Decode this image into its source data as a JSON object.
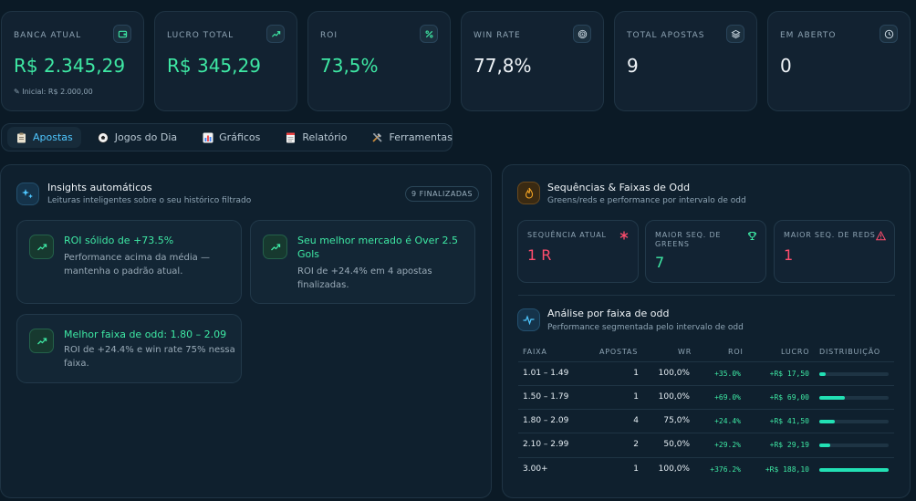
{
  "stats": [
    {
      "label": "BANCA ATUAL",
      "value": "R$ 2.345,29",
      "sub": "Inicial: R$ 2.000,00",
      "icon": "wallet-icon",
      "color": "#3ee8a4"
    },
    {
      "label": "LUCRO TOTAL",
      "value": "R$ 345,29",
      "icon": "trending-up-icon",
      "color": "#3ee8a4"
    },
    {
      "label": "ROI",
      "value": "73,5%",
      "icon": "percent-icon",
      "color": "#3ee8a4"
    },
    {
      "label": "WIN RATE",
      "value": "77,8%",
      "icon": "target-icon",
      "color": "#eef3f7"
    },
    {
      "label": "TOTAL APOSTAS",
      "value": "9",
      "icon": "layers-icon",
      "color": "#eef3f7"
    },
    {
      "label": "EM ABERTO",
      "value": "0",
      "icon": "clock-icon",
      "color": "#eef3f7"
    }
  ],
  "tabs": [
    {
      "label": "Apostas",
      "icon": "clipboard-icon",
      "active": true
    },
    {
      "label": "Jogos do Dia",
      "icon": "soccer-ball-icon",
      "active": false
    },
    {
      "label": "Gráficos",
      "icon": "bar-chart-icon",
      "active": false
    },
    {
      "label": "Relatório",
      "icon": "document-icon",
      "active": false
    },
    {
      "label": "Ferramentas",
      "icon": "tools-icon",
      "active": false
    }
  ],
  "insights": {
    "title": "Insights automáticos",
    "subtitle": "Leituras inteligentes sobre o seu histórico filtrado",
    "badge": "9 FINALIZADAS",
    "cards": [
      {
        "title": "ROI sólido de +73.5%",
        "desc_lines": [
          "Performance acima da média —",
          "mantenha o padrão atual."
        ]
      },
      {
        "title_lines": [
          "Seu melhor mercado é Over 2.5",
          "Gols"
        ],
        "desc_lines": [
          "ROI de +24.4% em 4 apostas",
          "finalizadas."
        ]
      },
      {
        "title": "Melhor faixa de odd: 1.80 – 2.09",
        "desc_lines": [
          "ROI de +24.4% e win rate 75% nessa",
          "faixa."
        ]
      }
    ]
  },
  "sequences": {
    "title": "Sequências & Faixas de Odd",
    "subtitle": "Greens/reds e performance por intervalo de odd",
    "cards": [
      {
        "label": "SEQUÊNCIA ATUAL",
        "value": "1 R",
        "icon": "asterisk-icon",
        "color": "#ff4d6d"
      },
      {
        "label_lines": [
          "MAIOR SEQ. DE",
          "GREENS"
        ],
        "value": "7",
        "icon": "trophy-icon",
        "color": "#3ee8a4"
      },
      {
        "label": "MAIOR SEQ. DE REDS",
        "value": "1",
        "icon": "warning-icon",
        "color": "#ff4d6d"
      }
    ]
  },
  "odds": {
    "title": "Análise por faixa de odd",
    "subtitle": "Performance segmentada pelo intervalo de odd",
    "headers": [
      "FAIXA",
      "APOSTAS",
      "WR",
      "ROI",
      "LUCRO",
      "DISTRIBUIÇÃO"
    ],
    "rows": [
      {
        "faixa": "1.01 – 1.49",
        "apostas": "1",
        "wr": "100,0%",
        "roi": "+35.0%",
        "lucro": "+R$ 17,50",
        "dist": 0.09
      },
      {
        "faixa": "1.50 – 1.79",
        "apostas": "1",
        "wr": "100,0%",
        "roi": "+69.0%",
        "lucro": "+R$ 69,00",
        "dist": 0.37
      },
      {
        "faixa": "1.80 – 2.09",
        "apostas": "4",
        "wr": "75,0%",
        "roi": "+24.4%",
        "lucro": "+R$ 41,50",
        "dist": 0.22
      },
      {
        "faixa": "2.10 – 2.99",
        "apostas": "2",
        "wr": "50,0%",
        "roi": "+29.2%",
        "lucro": "+R$ 29,19",
        "dist": 0.16
      },
      {
        "faixa": "3.00+",
        "apostas": "1",
        "wr": "100,0%",
        "roi": "+376.2%",
        "lucro": "+R$ 188,10",
        "dist": 1.0
      }
    ]
  }
}
